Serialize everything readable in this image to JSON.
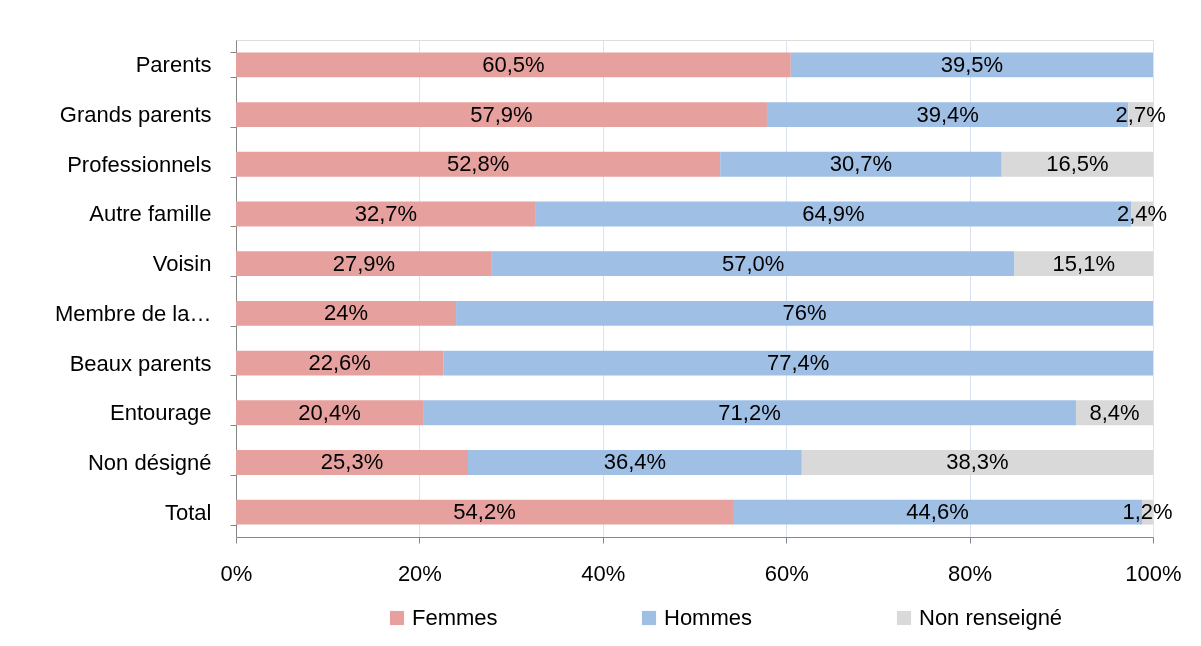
{
  "chart_data": {
    "type": "bar",
    "orientation": "horizontal",
    "stacked": true,
    "categories": [
      "Parents",
      "Grands parents",
      "Professionnels",
      "Autre famille",
      "Voisin",
      "Membre de la…",
      "Beaux parents",
      "Entourage",
      "Non désigné",
      "Total"
    ],
    "series": [
      {
        "name": "Femmes",
        "color": "#e6a19f",
        "values": [
          60.5,
          57.9,
          52.8,
          32.7,
          27.9,
          24,
          22.6,
          20.4,
          25.3,
          54.2
        ],
        "value_labels": [
          "60,5%",
          "57,9%",
          "52,8%",
          "32,7%",
          "27,9%",
          "24%",
          "22,6%",
          "20,4%",
          "25,3%",
          "54,2%"
        ]
      },
      {
        "name": "Hommes",
        "color": "#a0bfe5",
        "values": [
          39.5,
          39.4,
          30.7,
          64.9,
          57.0,
          76,
          77.4,
          71.2,
          36.4,
          44.6
        ],
        "value_labels": [
          "39,5%",
          "39,4%",
          "30,7%",
          "64,9%",
          "57,0%",
          "76%",
          "77,4%",
          "71,2%",
          "36,4%",
          "44,6%"
        ]
      },
      {
        "name": "Non renseigné",
        "color": "#d9d9d9",
        "values": [
          null,
          2.7,
          16.5,
          2.4,
          15.1,
          null,
          null,
          8.4,
          38.3,
          1.2
        ],
        "value_labels": [
          null,
          "2,7%",
          "16,5%",
          "2,4%",
          "15,1%",
          null,
          null,
          "8,4%",
          "38,3%",
          "1,2%"
        ]
      }
    ],
    "xlim": [
      0,
      100
    ],
    "xticks": [
      {
        "value": 0,
        "label": "0%"
      },
      {
        "value": 20,
        "label": "20%"
      },
      {
        "value": 40,
        "label": "40%"
      },
      {
        "value": 60,
        "label": "60%"
      },
      {
        "value": 80,
        "label": "80%"
      },
      {
        "value": 100,
        "label": "100%"
      }
    ],
    "grid": "x",
    "legend": "bottom"
  }
}
